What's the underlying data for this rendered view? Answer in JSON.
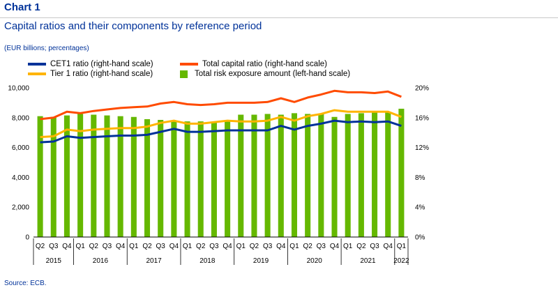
{
  "header": {
    "chart_number": "Chart 1",
    "title": "Capital ratios and their components by reference period",
    "units": "(EUR billions; percentages)",
    "source": "Source: ECB."
  },
  "legend": [
    {
      "label": "CET1 ratio (right-hand scale)",
      "color": "#003299",
      "kind": "line"
    },
    {
      "label": "Total capital ratio (right-hand scale)",
      "color": "#ff4b00",
      "kind": "line"
    },
    {
      "label": "Tier 1 ratio (right-hand scale)",
      "color": "#ffb400",
      "kind": "line"
    },
    {
      "label": "Total risk exposure amount (left-hand scale)",
      "color": "#65b800",
      "kind": "bar"
    }
  ],
  "chart_data": {
    "type": "bar",
    "x": {
      "quarters": [
        "Q2",
        "Q3",
        "Q4",
        "Q1",
        "Q2",
        "Q3",
        "Q4",
        "Q1",
        "Q2",
        "Q3",
        "Q4",
        "Q1",
        "Q2",
        "Q3",
        "Q4",
        "Q1",
        "Q2",
        "Q3",
        "Q4",
        "Q1",
        "Q2",
        "Q3",
        "Q4",
        "Q1",
        "Q2",
        "Q3",
        "Q4",
        "Q1"
      ],
      "years": [
        {
          "label": "2015",
          "start": 0,
          "count": 3
        },
        {
          "label": "2016",
          "start": 3,
          "count": 4
        },
        {
          "label": "2017",
          "start": 7,
          "count": 4
        },
        {
          "label": "2018",
          "start": 11,
          "count": 4
        },
        {
          "label": "2019",
          "start": 15,
          "count": 4
        },
        {
          "label": "2020",
          "start": 19,
          "count": 4
        },
        {
          "label": "2021",
          "start": 23,
          "count": 4
        },
        {
          "label": "2022",
          "start": 27,
          "count": 1
        }
      ]
    },
    "left_axis": {
      "ylim": [
        0,
        10000
      ],
      "ticks": [
        "0",
        "2,000",
        "4,000",
        "6,000",
        "8,000",
        "10,000"
      ]
    },
    "right_axis": {
      "ylim": [
        0,
        20
      ],
      "ticks": [
        "0%",
        "4%",
        "8%",
        "12%",
        "16%",
        "20%"
      ]
    },
    "bars": {
      "name": "Total risk exposure amount (left-hand scale)",
      "axis": "left",
      "color": "#65b800",
      "values": [
        8100,
        8050,
        8150,
        8250,
        8200,
        8150,
        8100,
        8050,
        7900,
        7850,
        7800,
        7750,
        7750,
        7700,
        7800,
        8200,
        8200,
        8250,
        8200,
        8300,
        8250,
        8250,
        8050,
        8250,
        8300,
        8350,
        8400,
        8600
      ]
    },
    "series": [
      {
        "name": "CET1 ratio (right-hand scale)",
        "axis": "right",
        "color": "#003299",
        "values": [
          12.7,
          12.8,
          13.5,
          13.3,
          13.4,
          13.5,
          13.6,
          13.6,
          13.7,
          14.1,
          14.5,
          14.1,
          14.1,
          14.2,
          14.3,
          14.3,
          14.3,
          14.3,
          14.9,
          14.4,
          14.9,
          15.2,
          15.6,
          15.4,
          15.5,
          15.4,
          15.5,
          14.9
        ]
      },
      {
        "name": "Tier 1 ratio (right-hand scale)",
        "axis": "right",
        "color": "#ffb400",
        "values": [
          13.4,
          13.5,
          14.4,
          14.2,
          14.4,
          14.5,
          14.6,
          14.6,
          14.8,
          15.3,
          15.6,
          15.2,
          15.2,
          15.4,
          15.6,
          15.5,
          15.5,
          15.6,
          16.1,
          15.6,
          16.2,
          16.5,
          17.0,
          16.8,
          16.8,
          16.8,
          16.8,
          16.1
        ]
      },
      {
        "name": "Total capital ratio (right-hand scale)",
        "axis": "right",
        "color": "#ff4b00",
        "values": [
          15.8,
          16.0,
          16.8,
          16.6,
          16.9,
          17.1,
          17.3,
          17.4,
          17.5,
          17.9,
          18.1,
          17.8,
          17.7,
          17.8,
          18.0,
          18.0,
          18.0,
          18.1,
          18.6,
          18.1,
          18.7,
          19.1,
          19.6,
          19.4,
          19.4,
          19.3,
          19.5,
          18.8
        ]
      }
    ]
  }
}
